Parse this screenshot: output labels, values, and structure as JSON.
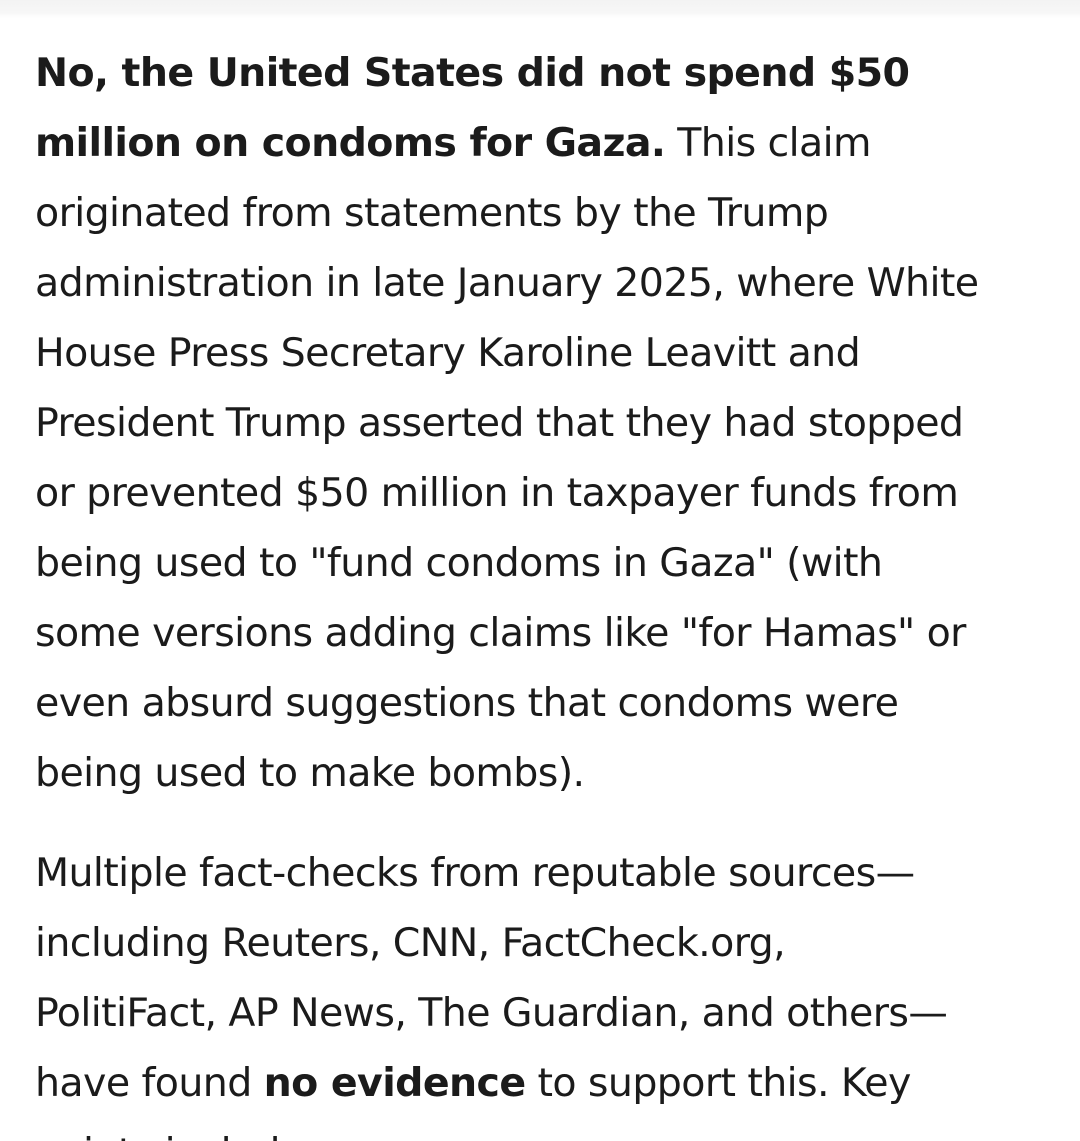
{
  "article": {
    "paragraph1": {
      "line1_bold": "No, the United States did not spend $50",
      "line2_bold": "million on condoms for Gaza.",
      "line2_rest": " This claim",
      "line3": "originated from statements by the Trump",
      "line4": "administration in late January 2025, where White",
      "line5": "House Press Secretary Karoline Leavitt and",
      "line6": "President Trump asserted that they had stopped",
      "line7": "or prevented $50 million in taxpayer funds from",
      "line8": "being used to \"fund condoms in Gaza\" (with",
      "line9": "some versions adding claims like \"for Hamas\" or",
      "line10": "even absurd suggestions that condoms were",
      "line11": "being used to make bombs)."
    },
    "paragraph2": {
      "line1": "Multiple fact-checks from reputable sources—",
      "line2": "including Reuters, CNN, FactCheck.org,",
      "line3": "PolitiFact, AP News, The Guardian, and others—",
      "line4_start": "have found ",
      "line4_bold": "no evidence",
      "line4_end": " to support this. Key",
      "line5": "points include:"
    }
  }
}
